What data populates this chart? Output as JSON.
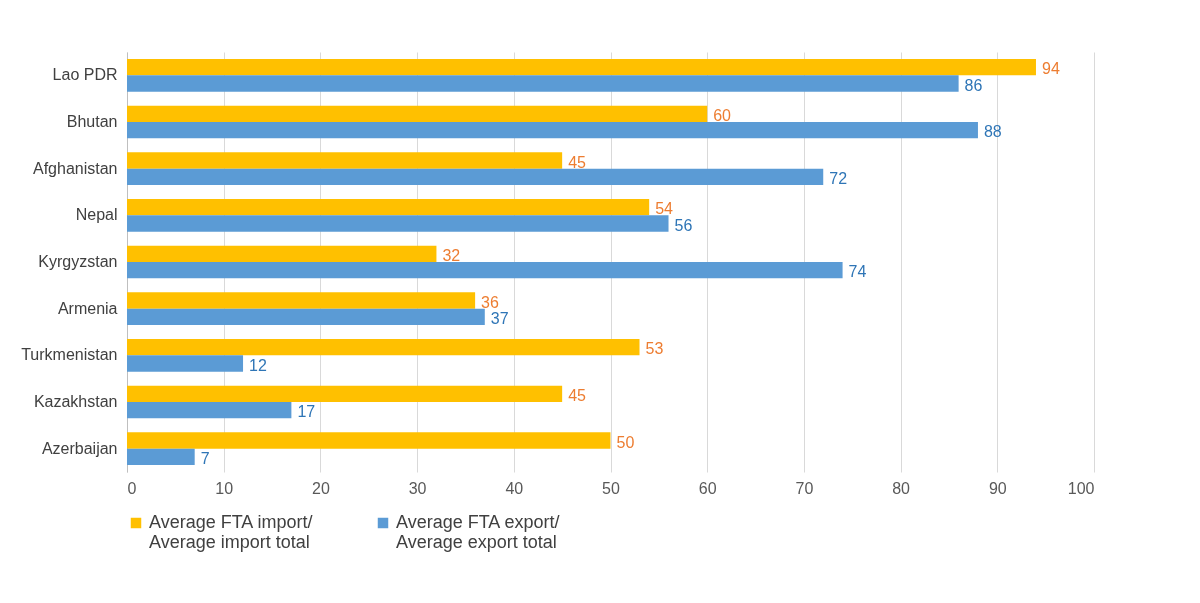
{
  "chart_data": {
    "type": "bar",
    "orientation": "horizontal",
    "categories": [
      "Lao PDR",
      "Bhutan",
      "Afghanistan",
      "Nepal",
      "Kyrgyzstan",
      "Armenia",
      "Turkmenistan",
      "Kazakhstan",
      "Azerbaijan"
    ],
    "series": [
      {
        "name": "Average FTA import/ Average import total",
        "color": "#ffc000",
        "values": [
          94,
          60,
          45,
          54,
          32,
          36,
          53,
          45,
          50
        ]
      },
      {
        "name": "Average FTA export/ Average export total",
        "color": "#5b9bd5",
        "values": [
          86,
          88,
          72,
          56,
          74,
          37,
          12,
          17,
          7
        ]
      }
    ],
    "xlim": [
      0,
      100
    ],
    "xticks": [
      0,
      10,
      20,
      30,
      40,
      50,
      60,
      70,
      80,
      90,
      100
    ],
    "grid": "x",
    "legend": "bottom",
    "data_labels": true
  }
}
